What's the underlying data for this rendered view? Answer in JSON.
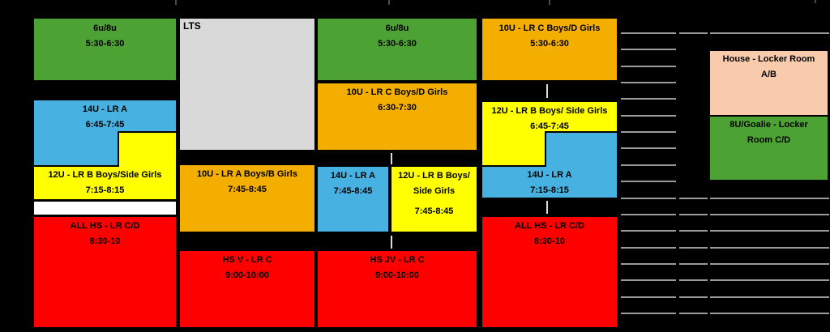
{
  "palette": {
    "green": "#4CA232",
    "orange": "#F3AE00",
    "blue": "#47B2E2",
    "yellow": "#FFFF00",
    "red": "#FF0000",
    "gray": "#D9D9D9",
    "peach": "#F8CBAD",
    "white": "#FFFFFF",
    "black_background": "#000000",
    "block_border": "#000000",
    "text": "#000000",
    "grid_line": "#9A9A9A",
    "tick": "#DCDCDC",
    "top_stub": "#4A4A4A"
  },
  "columns": [
    {
      "events": [
        {
          "label": "6u/8u",
          "time": "5:30-6:30",
          "color": "green"
        },
        {
          "label": "14U - LR A",
          "time": "6:45-7:45",
          "color": "blue"
        },
        {
          "label": "12U - LR B Boys/Side Girls",
          "time": "7:15-8:15",
          "color": "yellow"
        },
        {
          "label": "",
          "time": "",
          "color": "white"
        },
        {
          "label": "ALL HS - LR C/D",
          "time": "8:30-10",
          "color": "red"
        }
      ]
    },
    {
      "events": [
        {
          "label": "LTS",
          "time": "",
          "color": "gray"
        },
        {
          "label": "10U - LR A Boys/B Girls",
          "time": "7:45-8:45",
          "color": "orange"
        },
        {
          "label": "HS V - LR C",
          "time": "9:00-10:00",
          "color": "red"
        }
      ]
    },
    {
      "events": [
        {
          "label": "6u/8u",
          "time": "5:30-6:30",
          "color": "green"
        },
        {
          "label": "10U - LR C Boys/D Girls",
          "time": "6:30-7:30",
          "color": "orange"
        },
        {
          "label": "14U - LR A",
          "time": "7:45-8:45",
          "color": "blue"
        },
        {
          "label": "12U - LR B Boys/",
          "label2": "Side Girls",
          "time": "7:45-8:45",
          "color": "yellow"
        },
        {
          "label": "HS JV - LR C",
          "time": "9:00-10:00",
          "color": "red"
        }
      ]
    },
    {
      "events": [
        {
          "label": "10U - LR C Boys/D Girls",
          "time": "5:30-6:30",
          "color": "orange"
        },
        {
          "label": "12U - LR B Boys/ Side Girls",
          "time": "6:45-7:45",
          "color": "yellow"
        },
        {
          "label": "14U - LR A",
          "time": "7:15-8:15",
          "color": "blue"
        },
        {
          "label": "ALL HS - LR C/D",
          "time": "8:30-10",
          "color": "red"
        }
      ]
    }
  ],
  "locker_rooms": [
    {
      "label": "House - Locker Room",
      "label2": "A/B",
      "color": "peach"
    },
    {
      "label": "8U/Goalie - Locker",
      "label2": "Room C/D",
      "color": "green"
    }
  ]
}
